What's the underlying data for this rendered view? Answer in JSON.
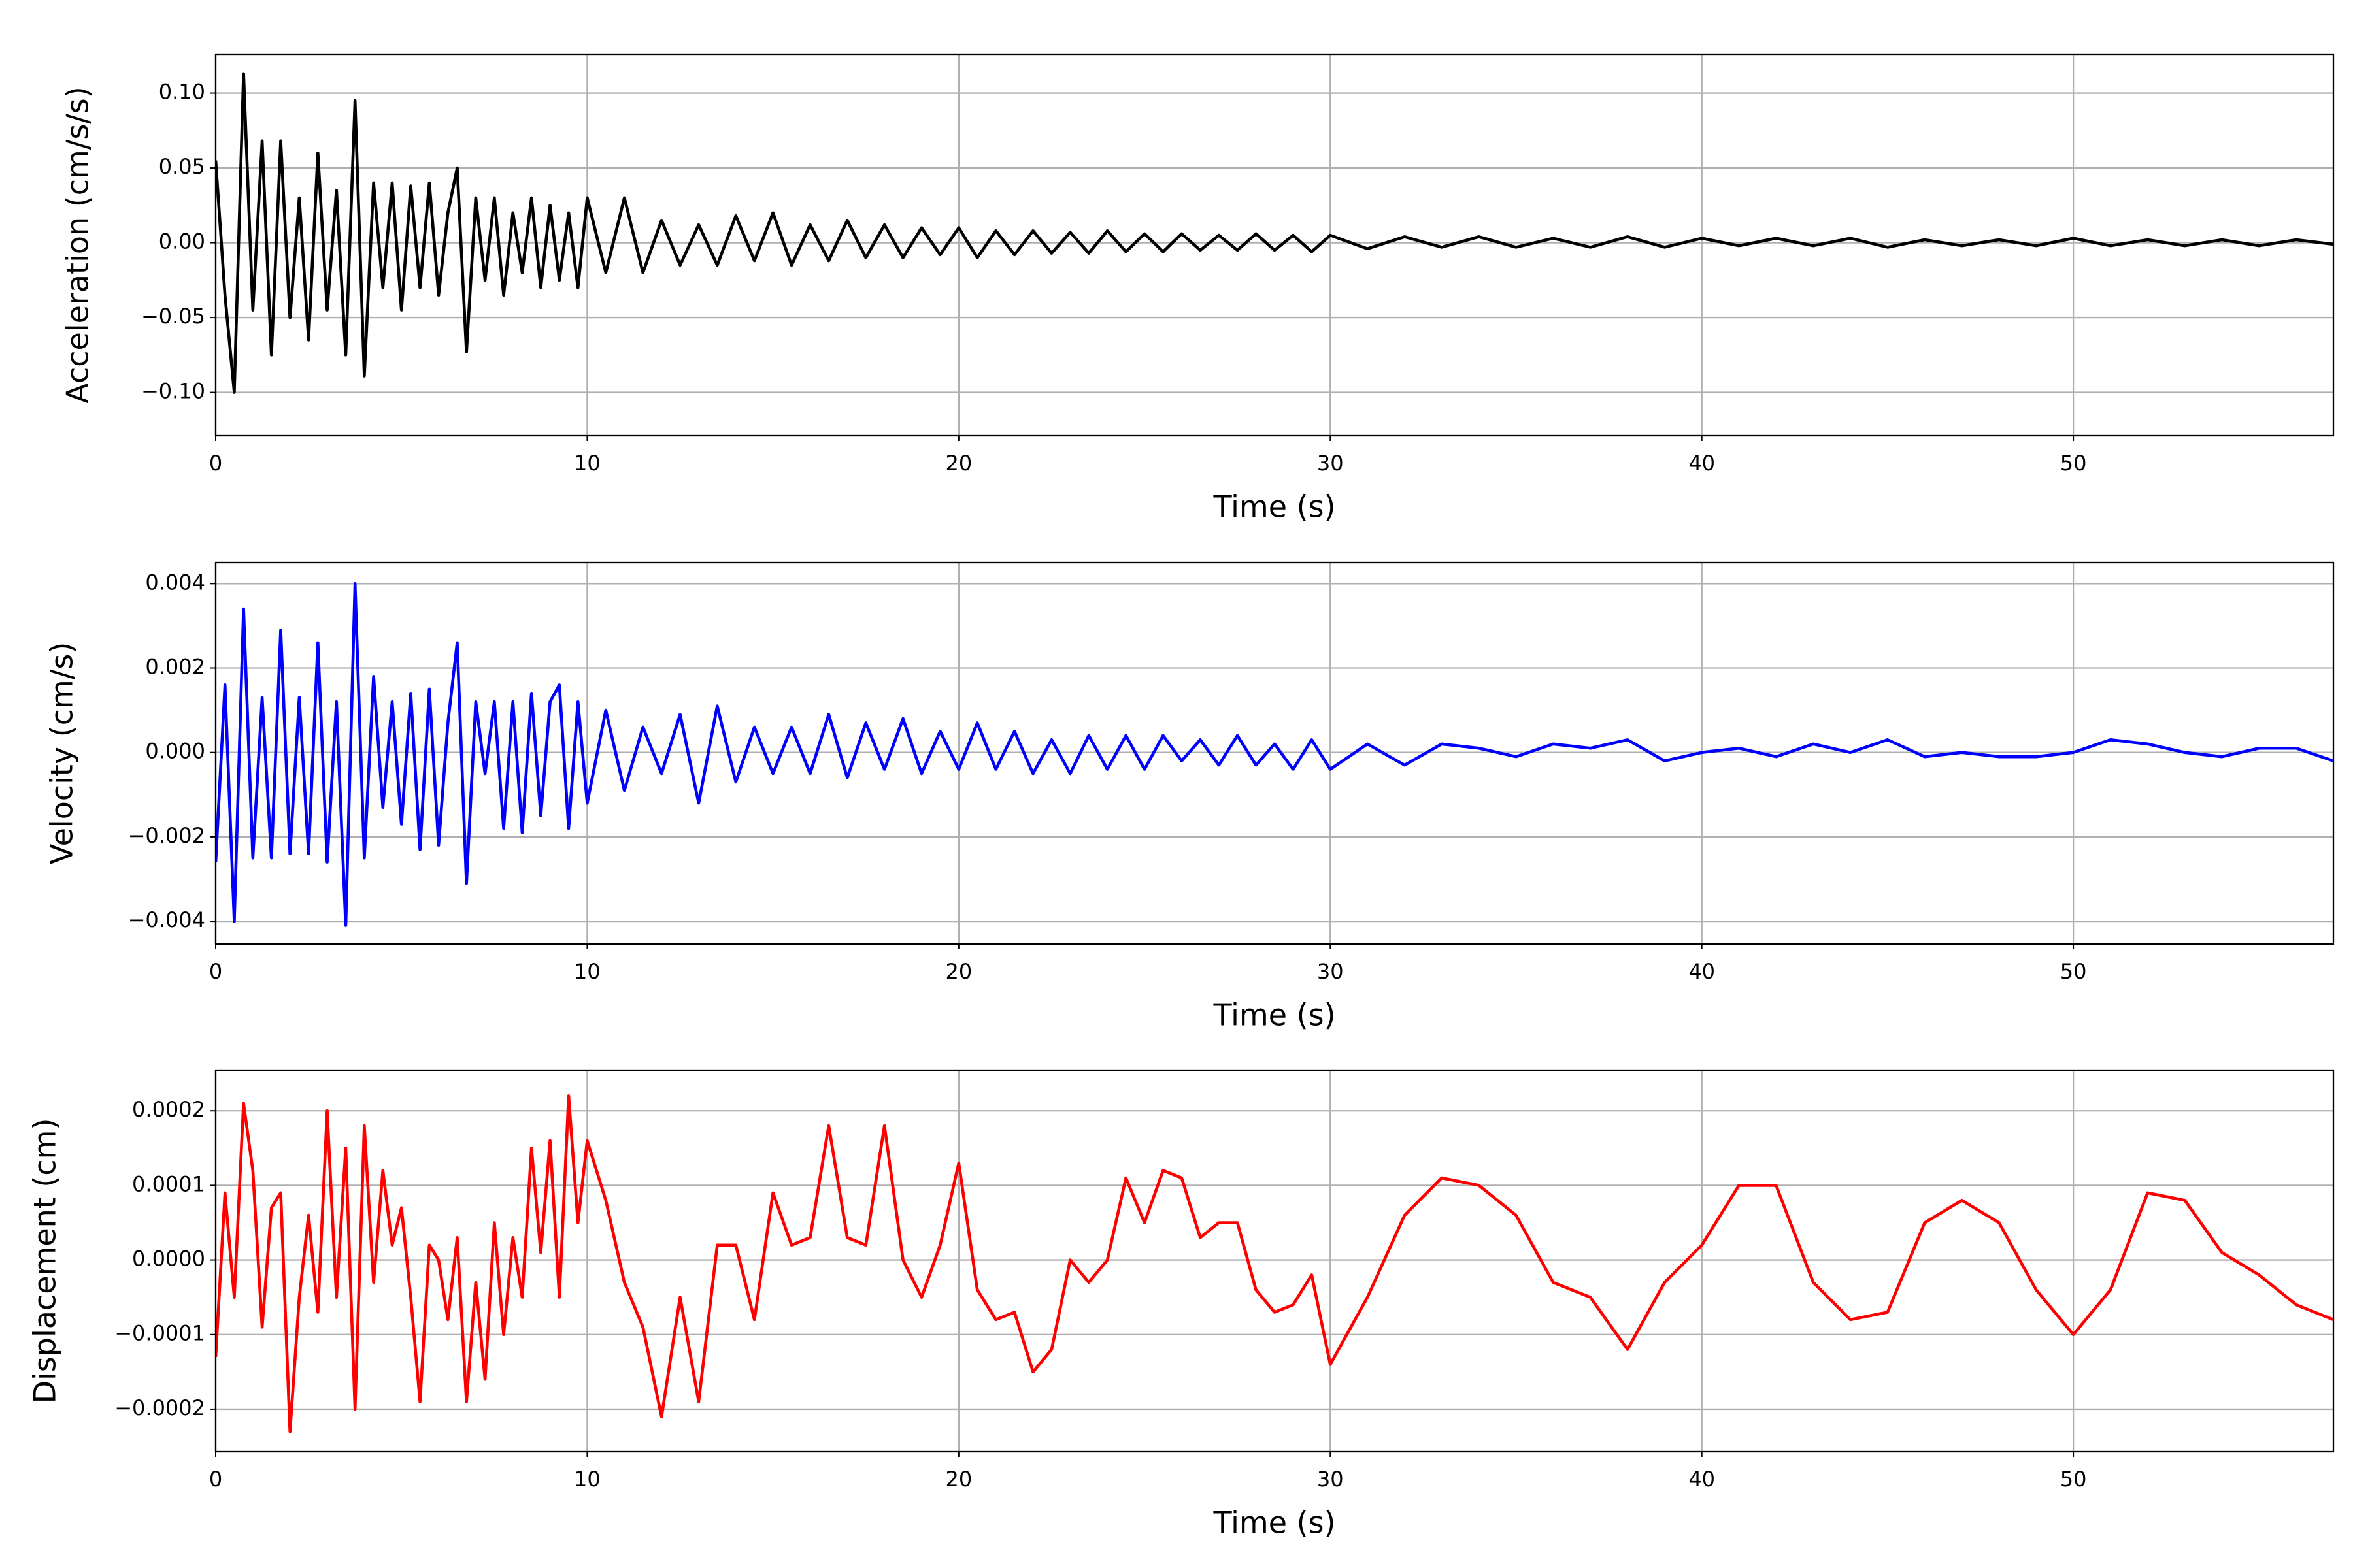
{
  "chart_data": [
    {
      "type": "line",
      "xlabel": "Time (s)",
      "ylabel": "Acceleration (cm/s/s)",
      "color": "#000000",
      "grid": true,
      "xlim": [
        0,
        57
      ],
      "xticks": [
        0,
        10,
        20,
        30,
        40,
        50
      ],
      "ylim": [
        -0.129,
        0.126
      ],
      "yticks": [
        {
          "value": -0.1,
          "label": "−0.10"
        },
        {
          "value": -0.05,
          "label": "−0.05"
        },
        {
          "value": 0,
          "label": "0.00"
        },
        {
          "value": 0.05,
          "label": "0.05"
        },
        {
          "value": 0.1,
          "label": "0.10"
        }
      ],
      "x": [
        0,
        0.25,
        0.5,
        0.75,
        1,
        1.25,
        1.5,
        1.75,
        2,
        2.25,
        2.5,
        2.75,
        3,
        3.25,
        3.5,
        3.75,
        4,
        4.25,
        4.5,
        4.75,
        5,
        5.25,
        5.5,
        5.75,
        6,
        6.25,
        6.5,
        6.75,
        7,
        7.25,
        7.5,
        7.75,
        8,
        8.25,
        8.5,
        8.75,
        9,
        9.25,
        9.5,
        9.75,
        10,
        10.5,
        11,
        11.5,
        12,
        12.5,
        13,
        13.5,
        14,
        14.5,
        15,
        15.5,
        16,
        16.5,
        17,
        17.5,
        18,
        18.5,
        19,
        19.5,
        20,
        20.5,
        21,
        21.5,
        22,
        22.5,
        23,
        23.5,
        24,
        24.5,
        25,
        25.5,
        26,
        26.5,
        27,
        27.5,
        28,
        28.5,
        29,
        29.5,
        30,
        31,
        32,
        33,
        34,
        35,
        36,
        37,
        38,
        39,
        40,
        41,
        42,
        43,
        44,
        45,
        46,
        47,
        48,
        49,
        50,
        51,
        52,
        53,
        54,
        55,
        56,
        57
      ],
      "values": [
        0.055,
        -0.035,
        -0.1,
        0.113,
        -0.045,
        0.068,
        -0.075,
        0.068,
        -0.05,
        0.03,
        -0.065,
        0.06,
        -0.045,
        0.035,
        -0.075,
        0.095,
        -0.089,
        0.04,
        -0.03,
        0.04,
        -0.045,
        0.038,
        -0.03,
        0.04,
        -0.035,
        0.02,
        0.05,
        -0.073,
        0.03,
        -0.025,
        0.03,
        -0.035,
        0.02,
        -0.02,
        0.03,
        -0.03,
        0.025,
        -0.025,
        0.02,
        -0.03,
        0.03,
        -0.02,
        0.03,
        -0.02,
        0.015,
        -0.015,
        0.012,
        -0.015,
        0.018,
        -0.012,
        0.02,
        -0.015,
        0.012,
        -0.012,
        0.015,
        -0.01,
        0.012,
        -0.01,
        0.01,
        -0.008,
        0.01,
        -0.01,
        0.008,
        -0.008,
        0.008,
        -0.007,
        0.007,
        -0.007,
        0.008,
        -0.006,
        0.006,
        -0.006,
        0.006,
        -0.005,
        0.005,
        -0.005,
        0.006,
        -0.005,
        0.005,
        -0.006,
        0.005,
        -0.004,
        0.004,
        -0.003,
        0.004,
        -0.003,
        0.003,
        -0.003,
        0.004,
        -0.003,
        0.003,
        -0.002,
        0.003,
        -0.002,
        0.003,
        -0.003,
        0.002,
        -0.002,
        0.002,
        -0.002,
        0.003,
        -0.002,
        0.002,
        -0.002,
        0.002,
        -0.002,
        0.002,
        -0.001
      ]
    },
    {
      "type": "line",
      "xlabel": "Time (s)",
      "ylabel": "Velocity (cm/s)",
      "color": "#0000ff",
      "grid": true,
      "xlim": [
        0,
        57
      ],
      "xticks": [
        0,
        10,
        20,
        30,
        40,
        50
      ],
      "ylim": [
        -0.00454,
        0.0045
      ],
      "yticks": [
        {
          "value": -0.004,
          "label": "−0.004"
        },
        {
          "value": -0.002,
          "label": "−0.002"
        },
        {
          "value": 0,
          "label": "0.000"
        },
        0.002,
        0.004
      ],
      "x": [
        0,
        0.25,
        0.5,
        0.75,
        1,
        1.25,
        1.5,
        1.75,
        2,
        2.25,
        2.5,
        2.75,
        3,
        3.25,
        3.5,
        3.75,
        4,
        4.25,
        4.5,
        4.75,
        5,
        5.25,
        5.5,
        5.75,
        6,
        6.25,
        6.5,
        6.75,
        7,
        7.25,
        7.5,
        7.75,
        8,
        8.25,
        8.5,
        8.75,
        9,
        9.25,
        9.5,
        9.75,
        10,
        10.5,
        11,
        11.5,
        12,
        12.5,
        13,
        13.5,
        14,
        14.5,
        15,
        15.5,
        16,
        16.5,
        17,
        17.5,
        18,
        18.5,
        19,
        19.5,
        20,
        20.5,
        21,
        21.5,
        22,
        22.5,
        23,
        23.5,
        24,
        24.5,
        25,
        25.5,
        26,
        26.5,
        27,
        27.5,
        28,
        28.5,
        29,
        29.5,
        30,
        31,
        32,
        33,
        34,
        35,
        36,
        37,
        38,
        39,
        40,
        41,
        42,
        43,
        44,
        45,
        46,
        47,
        48,
        49,
        50,
        51,
        52,
        53,
        54,
        55,
        56,
        57
      ],
      "values": [
        -0.0026,
        0.0016,
        -0.004,
        0.0034,
        -0.0025,
        0.0013,
        -0.0025,
        0.0029,
        -0.0024,
        0.0013,
        -0.0024,
        0.0026,
        -0.0026,
        0.0012,
        -0.0041,
        0.004,
        -0.0025,
        0.0018,
        -0.0013,
        0.0012,
        -0.0017,
        0.0014,
        -0.0023,
        0.0015,
        -0.0022,
        0.0007,
        0.0026,
        -0.0031,
        0.0012,
        -0.0005,
        0.0012,
        -0.0018,
        0.0012,
        -0.0019,
        0.0014,
        -0.0015,
        0.0012,
        0.0016,
        -0.0018,
        0.0012,
        -0.0012,
        0.001,
        -0.0009,
        0.0006,
        -0.0005,
        0.0009,
        -0.0012,
        0.0011,
        -0.0007,
        0.0006,
        -0.0005,
        0.0006,
        -0.0005,
        0.0009,
        -0.0006,
        0.0007,
        -0.0004,
        0.0008,
        -0.0005,
        0.0005,
        -0.0004,
        0.0007,
        -0.0004,
        0.0005,
        -0.0005,
        0.0003,
        -0.0005,
        0.0004,
        -0.0004,
        0.0004,
        -0.0004,
        0.0004,
        -0.0002,
        0.0003,
        -0.0003,
        0.0004,
        -0.0003,
        0.0002,
        -0.0004,
        0.0003,
        -0.0004,
        0.0002,
        -0.0003,
        0.0002,
        0.0001,
        -0.0001,
        0.0002,
        0.0001,
        0.0003,
        -0.0002,
        0,
        0.0001,
        -0.0001,
        0.0002,
        0,
        0.0003,
        -0.0001,
        0,
        -0.0001,
        -0.0001,
        0,
        0.0003,
        0.0002,
        0,
        -0.0001,
        0.0001,
        0.0001,
        -0.0002
      ]
    },
    {
      "type": "line",
      "xlabel": "Time (s)",
      "ylabel": "Displacement (cm)",
      "color": "#ff0000",
      "grid": true,
      "xlim": [
        0,
        57
      ],
      "xticks": [
        0,
        10,
        20,
        30,
        40,
        50
      ],
      "ylim": [
        -0.000257,
        0.0002545
      ],
      "yticks": [
        {
          "value": -0.0002,
          "label": "−0.0002"
        },
        {
          "value": -0.0001,
          "label": "−0.0001"
        },
        {
          "value": 0,
          "label": "0.0000"
        },
        0.0001,
        0.0002
      ],
      "x": [
        0,
        0.25,
        0.5,
        0.75,
        1,
        1.25,
        1.5,
        1.75,
        2,
        2.25,
        2.5,
        2.75,
        3,
        3.25,
        3.5,
        3.75,
        4,
        4.25,
        4.5,
        4.75,
        5,
        5.25,
        5.5,
        5.75,
        6,
        6.25,
        6.5,
        6.75,
        7,
        7.25,
        7.5,
        7.75,
        8,
        8.25,
        8.5,
        8.75,
        9,
        9.25,
        9.5,
        9.75,
        10,
        10.5,
        11,
        11.5,
        12,
        12.5,
        13,
        13.5,
        14,
        14.5,
        15,
        15.5,
        16,
        16.5,
        17,
        17.5,
        18,
        18.5,
        19,
        19.5,
        20,
        20.5,
        21,
        21.5,
        22,
        22.5,
        23,
        23.5,
        24,
        24.5,
        25,
        25.5,
        26,
        26.5,
        27,
        27.5,
        28,
        28.5,
        29,
        29.5,
        30,
        31,
        32,
        33,
        34,
        35,
        36,
        37,
        38,
        39,
        40,
        41,
        42,
        43,
        44,
        45,
        46,
        47,
        48,
        49,
        50,
        51,
        52,
        53,
        54,
        55,
        56,
        57
      ],
      "values": [
        -0.00013,
        9e-05,
        -5e-05,
        0.00021,
        0.00012,
        -9e-05,
        7e-05,
        9e-05,
        -0.00023,
        -5e-05,
        6e-05,
        -7e-05,
        0.0002,
        -5e-05,
        0.00015,
        -0.0002,
        0.00018,
        -3e-05,
        0.00012,
        2e-05,
        7e-05,
        -5e-05,
        -0.00019,
        2e-05,
        0,
        -8e-05,
        3e-05,
        -0.00019,
        -3e-05,
        -0.00016,
        5e-05,
        -0.0001,
        3e-05,
        -5e-05,
        0.00015,
        1e-05,
        0.00016,
        -5e-05,
        0.00022,
        5e-05,
        0.00016,
        8e-05,
        -3e-05,
        -9e-05,
        -0.00021,
        -5e-05,
        -0.00019,
        2e-05,
        2e-05,
        -8e-05,
        9e-05,
        2e-05,
        3e-05,
        0.00018,
        3e-05,
        2e-05,
        0.00018,
        0,
        -5e-05,
        2e-05,
        0.00013,
        -4e-05,
        -8e-05,
        -7e-05,
        -0.00015,
        -0.00012,
        0,
        -3e-05,
        0,
        0.00011,
        5e-05,
        0.00012,
        0.00011,
        3e-05,
        5e-05,
        5e-05,
        -4e-05,
        -7e-05,
        -6e-05,
        -2e-05,
        -0.00014,
        -5e-05,
        6e-05,
        0.00011,
        0.0001,
        6e-05,
        -3e-05,
        -5e-05,
        -0.00012,
        -3e-05,
        2e-05,
        0.0001,
        0.0001,
        -3e-05,
        -8e-05,
        -7e-05,
        5e-05,
        8e-05,
        5e-05,
        -4e-05,
        -0.0001,
        -4e-05,
        9e-05,
        8e-05,
        1e-05,
        -2e-05,
        -6e-05,
        -8e-05
      ]
    }
  ]
}
